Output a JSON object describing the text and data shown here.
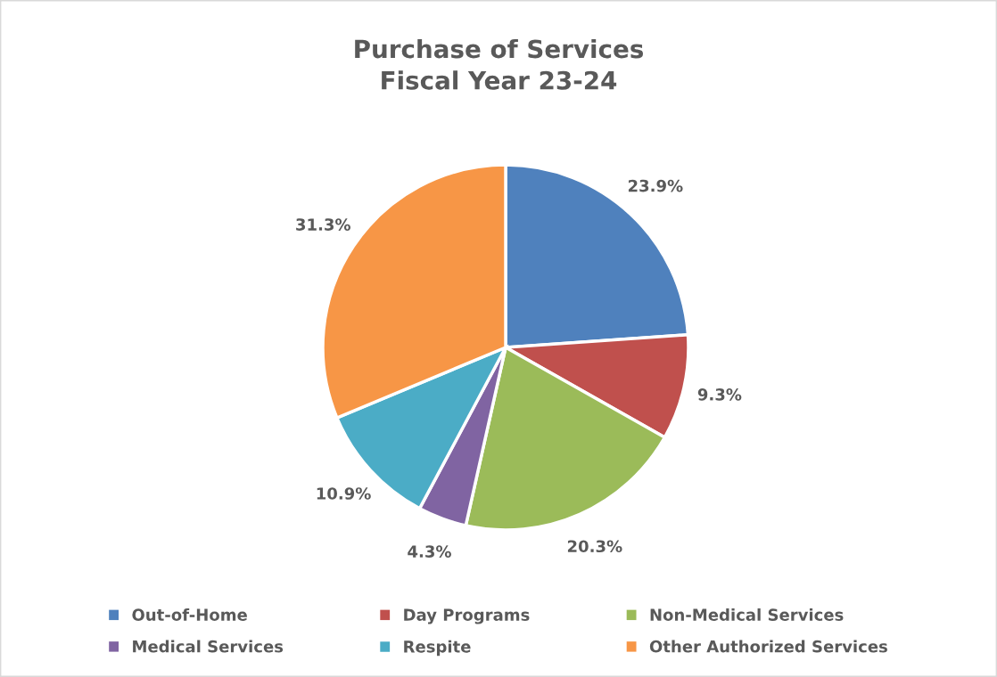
{
  "chart_data": {
    "type": "pie",
    "title": "Purchase of Services\nFiscal Year 23-24",
    "categories": [
      "Out-of-Home",
      "Day Programs",
      "Non-Medical Services",
      "Medical Services",
      "Respite",
      "Other Authorized Services"
    ],
    "values": [
      23.9,
      9.3,
      20.3,
      4.3,
      10.9,
      31.3
    ],
    "colors": [
      "#4f81bd",
      "#c0504d",
      "#9bbb59",
      "#8064a2",
      "#4bacc6",
      "#f79646"
    ],
    "value_labels": [
      "23.9%",
      "9.3%",
      "20.3%",
      "4.3%",
      "10.9%",
      "31.3%"
    ],
    "legend": "bottom"
  }
}
